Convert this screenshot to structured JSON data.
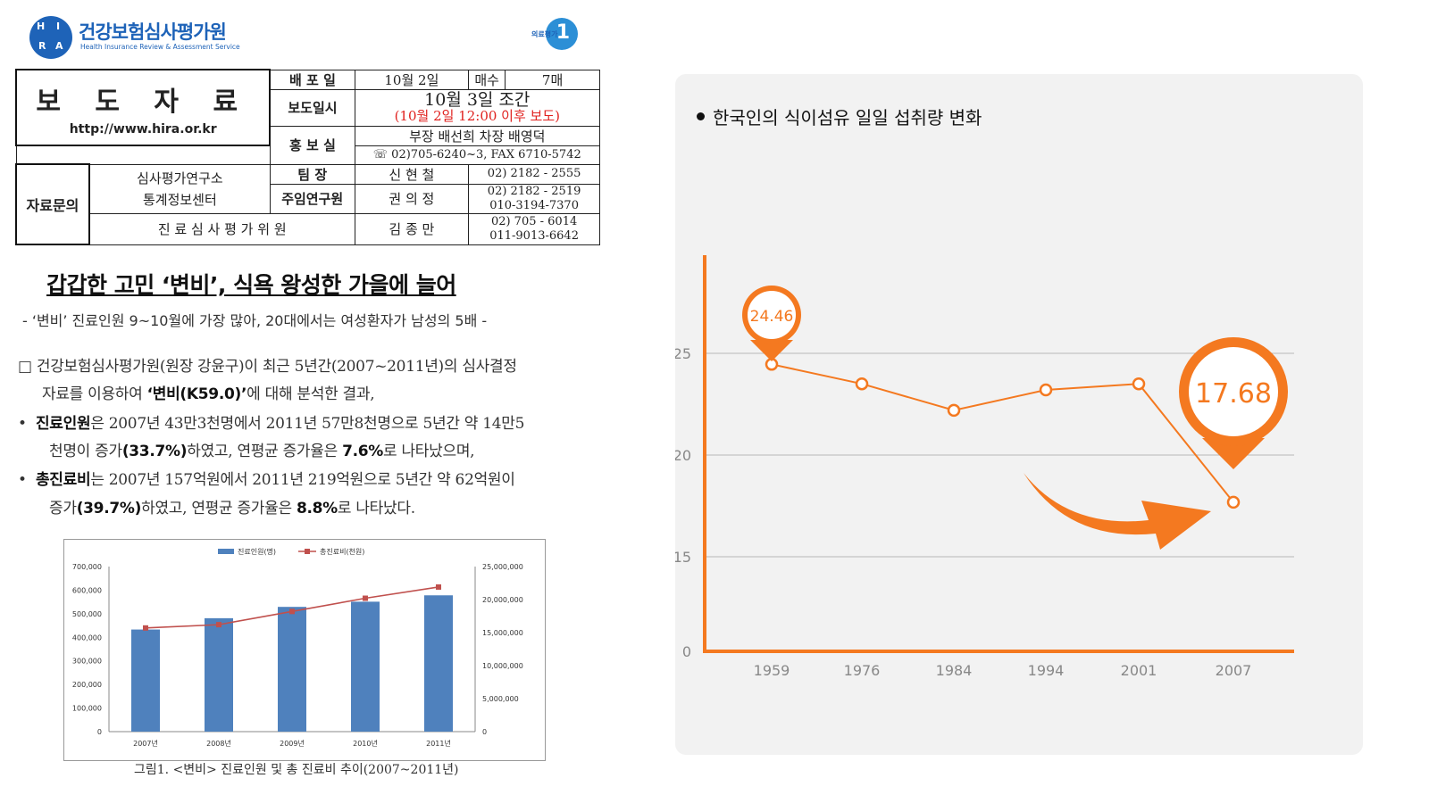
{
  "logo": {
    "letters": [
      "H",
      "I",
      "R",
      "A"
    ],
    "name": "건강보험심사평가원",
    "subtitle": "Health Insurance Review & Assessment Service"
  },
  "badge": {
    "text": "의료평가",
    "number": "1"
  },
  "info_table": {
    "title": "보 도 자 료",
    "url": "http://www.hira.or.kr",
    "distribution_label": "배 포 일",
    "distribution_date": "10월 2일",
    "pages_label": "매수",
    "pages_value": "7매",
    "release_label": "보도일시",
    "release_line1": "10월 3일 조간",
    "release_line2": "(10월 2일 12:00 이후 보도)",
    "pr_label": "홍 보 실",
    "pr_people": "부장 배선희 차장 배영덕",
    "pr_phone": "☏ 02)705-6240~3, FAX 6710-5742",
    "inquiry_label": "자료문의",
    "org1": "심사평가연구소",
    "org2": "통계정보센터",
    "role1_label": "팀 장",
    "role1_name": "신 현 철",
    "role1_phone": "02) 2182 - 2555",
    "role2_label": "주임연구원",
    "role2_name": "권 의 정",
    "role2_phone1": "02) 2182 - 2519",
    "role2_phone2": "010-3194-7370",
    "org3": "진 료 심 사 평 가 위 원",
    "role3_name": "김 종 만",
    "role3_phone1": "02) 705 - 6014",
    "role3_phone2": "011-9013-6642"
  },
  "article": {
    "headline": "갑갑한 고민 ‘변비’, 식욕 왕성한 가을에 늘어",
    "subhead": "- ‘변비’ 진료인원 9~10월에 가장 많아, 20대에서는 여성환자가 남성의 5배 -",
    "p1_a": "□ 건강보험심사평가원(원장 강윤구)이 최근 5년간(2007~2011년)의 심사결정",
    "p1_b_pre": "자료를 이용하여 ",
    "p1_b_bold": "‘변비(K59.0)’",
    "p1_b_post": "에 대해 분석한 결과,",
    "p2_a_bold": "진료인원",
    "p2_a_post": "은 2007년 43만3천명에서 2011년 57만8천명으로 5년간 약 14만5",
    "p2_b_pre": "천명이 증가",
    "p2_b_bold1": "(33.7%)",
    "p2_b_mid": "하였고, 연평균 증가율은 ",
    "p2_b_bold2": "7.6%",
    "p2_b_post": "로 나타났으며,",
    "p3_a_bold": "총진료비",
    "p3_a_post": "는 2007년 157억원에서 2011년 219억원으로 5년간 약 62억원이",
    "p3_b_pre": "증가",
    "p3_b_bold1": "(39.7%)",
    "p3_b_mid": "하였고, 연평균 증가율은 ",
    "p3_b_bold2": "8.8%",
    "p3_b_post": "로 나타났다.",
    "bullet": "•",
    "figure_caption": "그림1. <변비> 진료인원 및 총 진료비 추이(2007~2011년)"
  },
  "colors": {
    "orange": "#f47920",
    "blue": "#4f81bd",
    "red": "#c0504d"
  },
  "chart_data": [
    {
      "type": "bar",
      "categories": [
        "2007년",
        "2008년",
        "2009년",
        "2010년",
        "2011년"
      ],
      "series": [
        {
          "name": "진료인원(명)",
          "kind": "bar",
          "axis": "left",
          "values": [
            433000,
            481000,
            529000,
            551000,
            578000
          ]
        },
        {
          "name": "총진료비(천원)",
          "kind": "line",
          "axis": "right",
          "values": [
            15700000,
            16200000,
            18200000,
            20200000,
            21900000
          ]
        }
      ],
      "ylim_left": [
        0,
        700000
      ],
      "yticks_left": [
        "0",
        "100,000",
        "200,000",
        "300,000",
        "400,000",
        "500,000",
        "600,000",
        "700,000"
      ],
      "ylim_right": [
        0,
        25000000
      ],
      "yticks_right": [
        "0",
        "5,000,000",
        "10,000,000",
        "15,000,000",
        "20,000,000",
        "25,000,000"
      ],
      "legend": "top"
    },
    {
      "type": "line",
      "title": "한국인의 식이섬유 일일 섭취량 변화",
      "categories": [
        "1959",
        "1976",
        "1984",
        "1994",
        "2001",
        "2007"
      ],
      "values": [
        24.46,
        23.5,
        22.2,
        23.2,
        23.5,
        17.68
      ],
      "yticks": [
        "0",
        "15",
        "20",
        "25"
      ],
      "ylim": [
        0,
        30
      ],
      "callouts": [
        "24.46",
        "17.68"
      ],
      "grid": true
    }
  ]
}
